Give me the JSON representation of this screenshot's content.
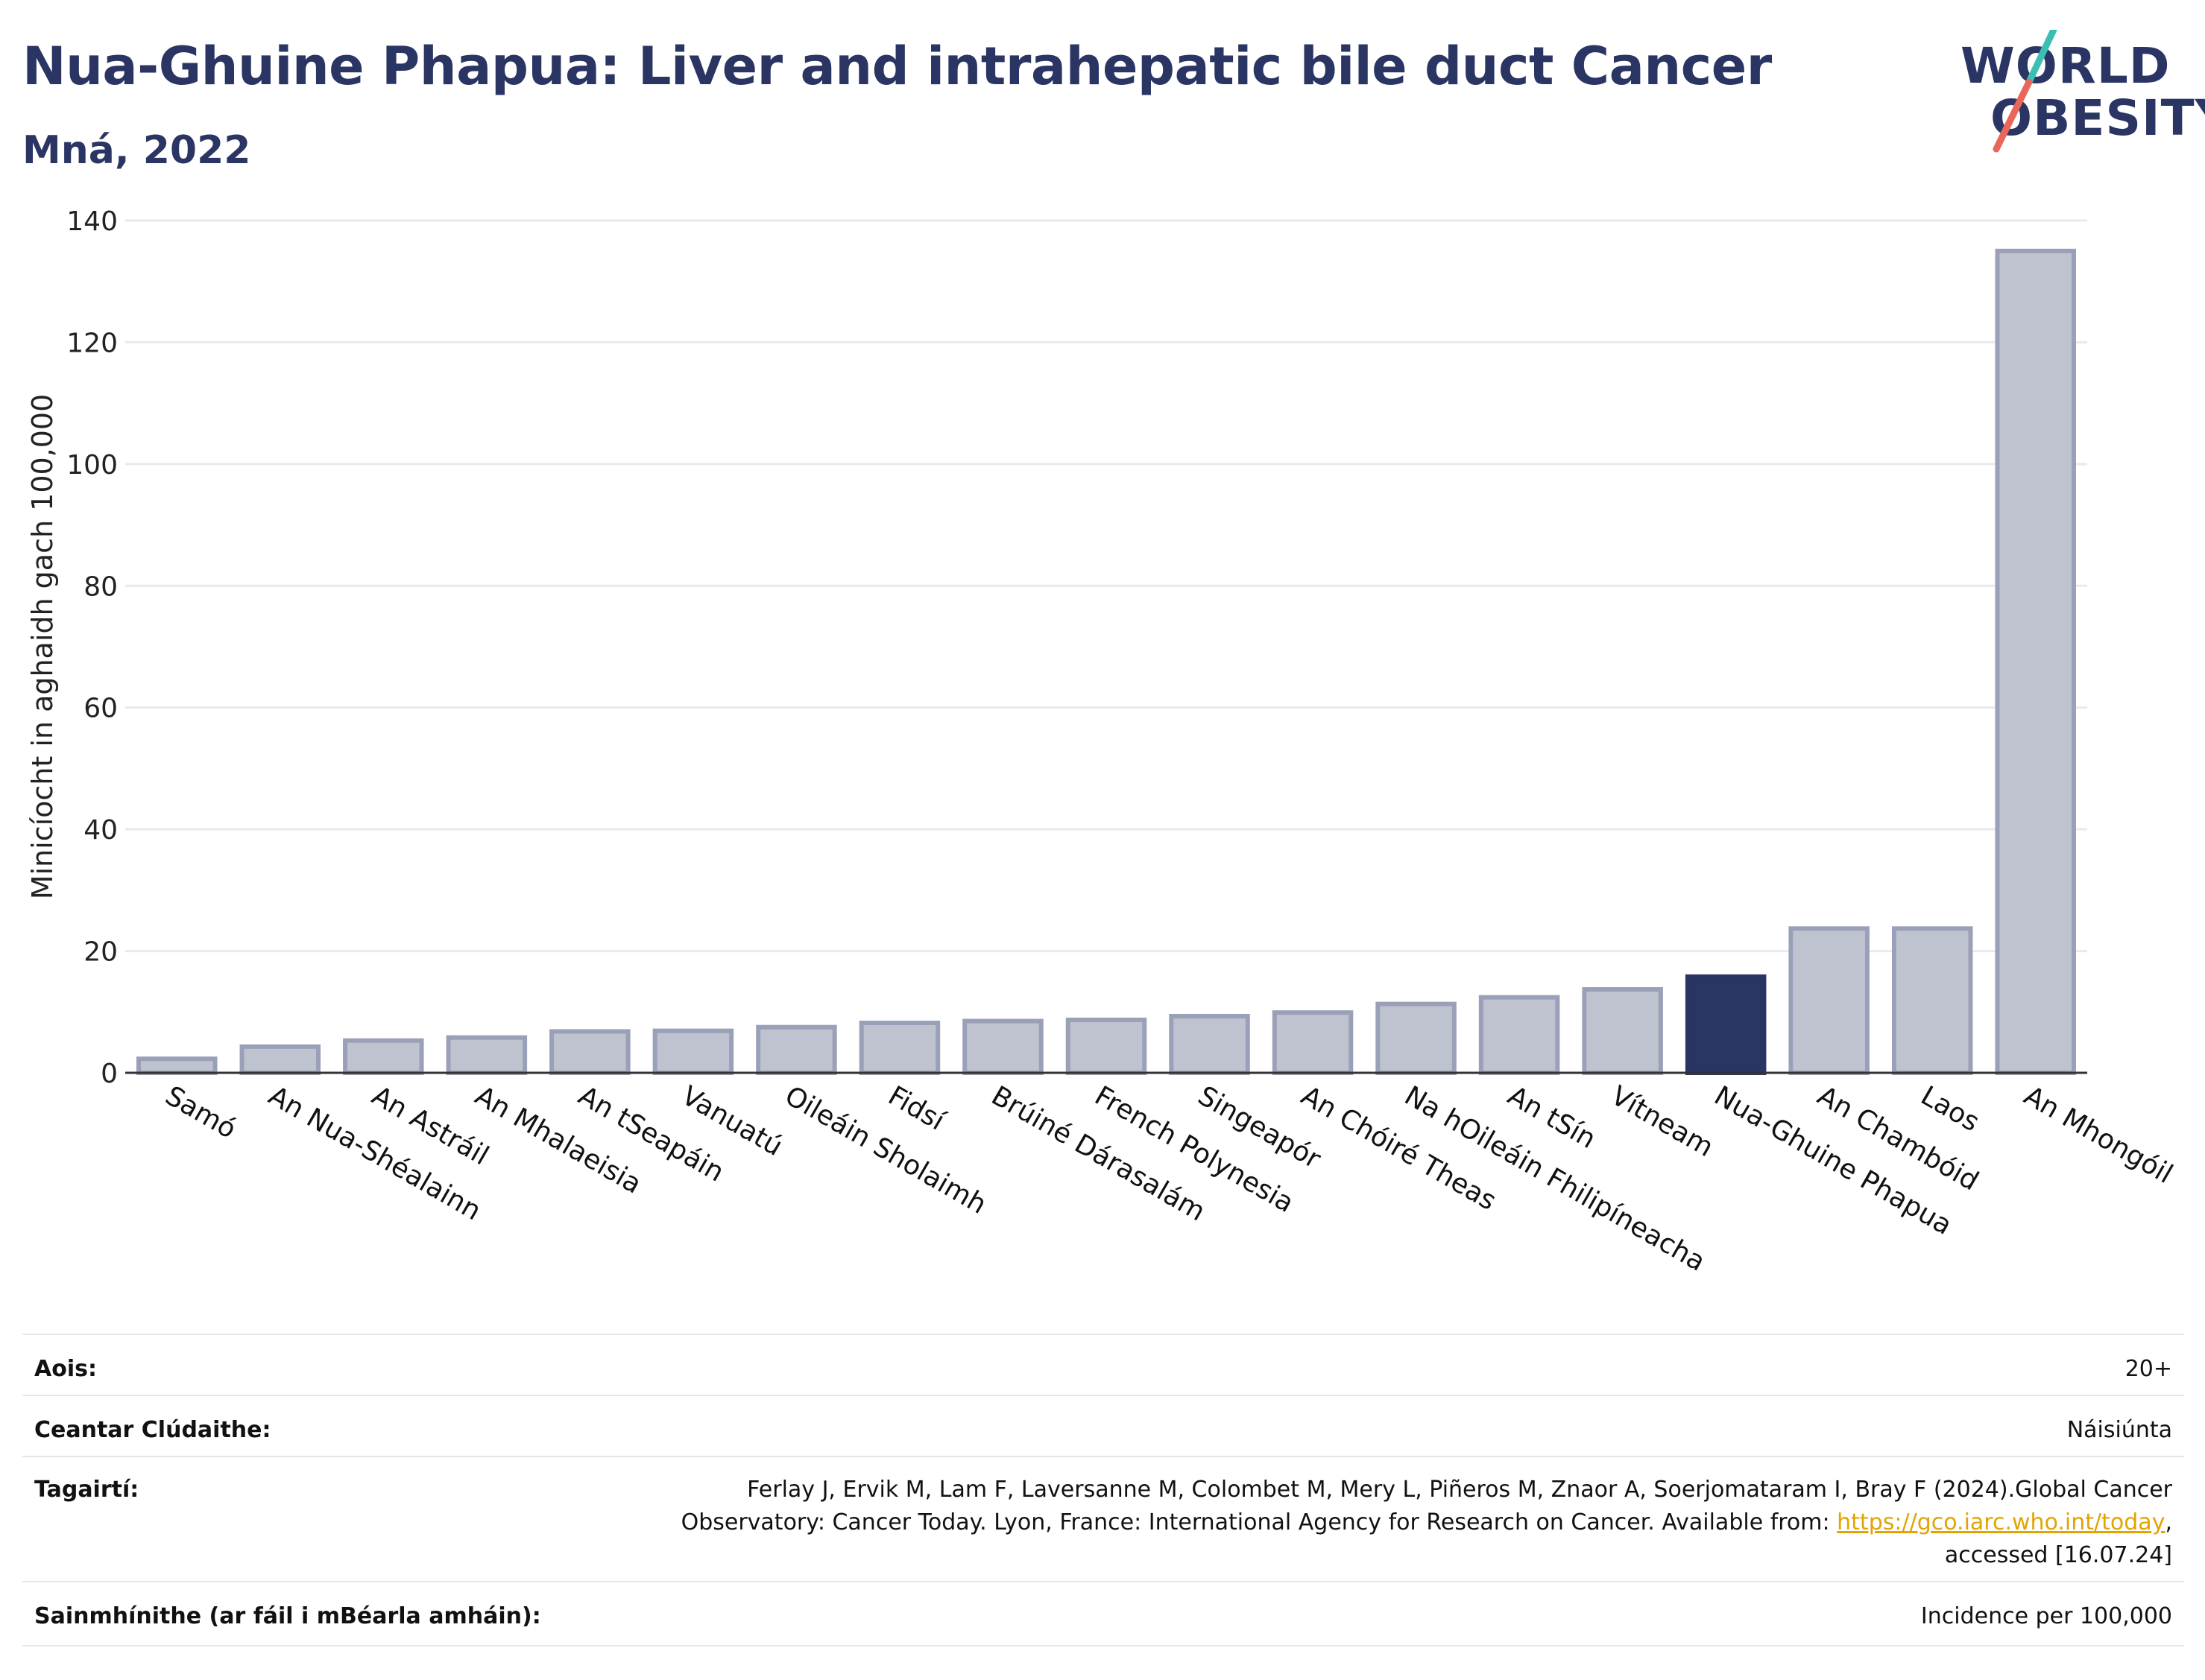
{
  "header": {
    "title": "Nua-Ghuine Phapua: Liver and intrahepatic bile duct Cancer",
    "subtitle": "Mná, 2022"
  },
  "logo": {
    "line1": "WORLD",
    "line2": "OBESITY",
    "colors": {
      "text": "#2b3563",
      "slash_top": "#3bbfb2",
      "slash_bottom": "#e8665a"
    }
  },
  "chart_data": {
    "type": "bar",
    "title": "Nua-Ghuine Phapua: Liver and intrahepatic bile duct Cancer",
    "subtitle": "Mná, 2022",
    "xlabel": "",
    "ylabel": "Minicíocht in aghaidh gach 100,000",
    "ylim": [
      0,
      140
    ],
    "yticks": [
      0,
      20,
      40,
      60,
      80,
      100,
      120,
      140
    ],
    "grid": true,
    "categories": [
      "Samó",
      "An Nua-Shéalainn",
      "An Astráil",
      "An Mhalaeisia",
      "An tSeapáin",
      "Vanuatú",
      "Oileáin Sholaimh",
      "Fidsí",
      "Brúiné Dárasalám",
      "French Polynesia",
      "Singeapór",
      "An Chóiré Theas",
      "Na hOileáin Fhilipíneacha",
      "An tSín",
      "Vítneam",
      "Nua-Ghuine Phapua",
      "An Chambóid",
      "Laos",
      "An Mhongóil"
    ],
    "values": [
      2.3,
      4.3,
      5.3,
      5.8,
      6.8,
      6.9,
      7.5,
      8.2,
      8.5,
      8.7,
      9.3,
      9.9,
      11.3,
      12.4,
      13.7,
      15.8,
      23.7,
      23.7,
      135.0
    ],
    "highlight": "Nua-Ghuine Phapua",
    "colors": {
      "bar": "#bfc3cf",
      "bar_border": "#9aa0b8",
      "highlight": "#2b3563"
    }
  },
  "info": {
    "age_label": "Aois:",
    "age_value": "20+",
    "coverage_label": "Ceantar Clúdaithe:",
    "coverage_value": "Náisiúnta",
    "references_label": "Tagairtí:",
    "references_line1": "Ferlay J, Ervik M, Lam F, Laversanne M, Colombet M, Mery L, Piñeros M, Znaor A, Soerjomataram I, Bray F (2024).Global Cancer",
    "references_line2_pre": "Observatory: Cancer Today. Lyon, France: International Agency for Research on Cancer. Available from: ",
    "references_link": "https://gco.iarc.who.int/today",
    "references_line2_post": ",",
    "references_line3": "accessed [16.07.24]",
    "definitions_label": "Sainmhínithe (ar fáil i mBéarla amháin):",
    "definitions_value": "Incidence per 100,000"
  }
}
